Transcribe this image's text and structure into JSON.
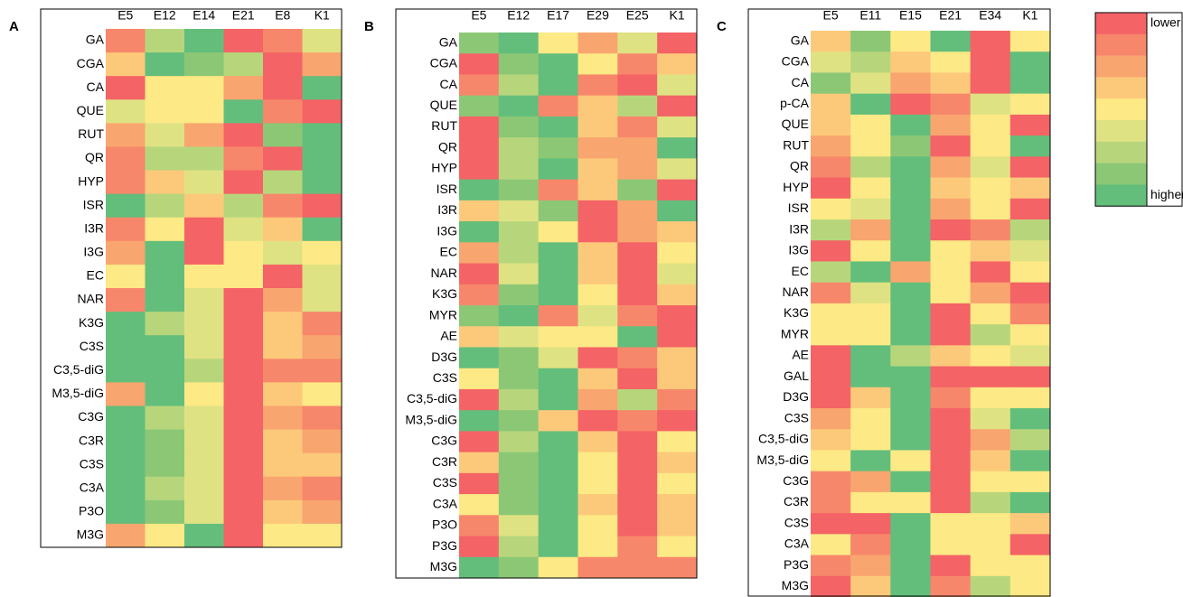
{
  "chart_data": [
    {
      "type": "heatmap",
      "label": "A",
      "columns": [
        "E5",
        "E12",
        "E14",
        "E21",
        "E8",
        "K1"
      ],
      "rows": [
        "GA",
        "CGA",
        "CA",
        "QUE",
        "RUT",
        "QR",
        "HYP",
        "ISR",
        "I3R",
        "I3G",
        "EC",
        "NAR",
        "K3G",
        "C3S",
        "C3,5-diG",
        "M3,5-diG",
        "C3G",
        "C3R",
        "C3S",
        "C3A",
        "P3O",
        "M3G"
      ],
      "values": [
        [
          1,
          6,
          8,
          0,
          1,
          5
        ],
        [
          3,
          8,
          7,
          6,
          0,
          2
        ],
        [
          0,
          4,
          4,
          2,
          0,
          8
        ],
        [
          5,
          4,
          4,
          8,
          1,
          0
        ],
        [
          2,
          5,
          2,
          0,
          7,
          8
        ],
        [
          1,
          6,
          6,
          1,
          0,
          8
        ],
        [
          1,
          3,
          5,
          0,
          6,
          8
        ],
        [
          8,
          6,
          3,
          6,
          1,
          0
        ],
        [
          1,
          4,
          0,
          5,
          3,
          8
        ],
        [
          2,
          8,
          0,
          4,
          5,
          4
        ],
        [
          4,
          8,
          4,
          4,
          0,
          5
        ],
        [
          1,
          8,
          5,
          0,
          2,
          5
        ],
        [
          8,
          6,
          5,
          0,
          3,
          1
        ],
        [
          8,
          8,
          5,
          0,
          3,
          2
        ],
        [
          8,
          8,
          6,
          0,
          1,
          1
        ],
        [
          2,
          8,
          4,
          0,
          3,
          4
        ],
        [
          8,
          6,
          5,
          0,
          2,
          1
        ],
        [
          8,
          7,
          5,
          0,
          3,
          2
        ],
        [
          8,
          7,
          5,
          0,
          3,
          3
        ],
        [
          8,
          6,
          5,
          0,
          2,
          1
        ],
        [
          8,
          7,
          5,
          0,
          3,
          2
        ],
        [
          2,
          4,
          8,
          0,
          4,
          4
        ]
      ]
    },
    {
      "type": "heatmap",
      "label": "B",
      "columns": [
        "E5",
        "E12",
        "E17",
        "E29",
        "E25",
        "K1"
      ],
      "rows": [
        "GA",
        "CGA",
        "CA",
        "QUE",
        "RUT",
        "QR",
        "HYP",
        "ISR",
        "I3R",
        "I3G",
        "EC",
        "NAR",
        "K3G",
        "MYR",
        "AE",
        "D3G",
        "C3S",
        "C3,5-diG",
        "M3,5-diG",
        "C3G",
        "C3R",
        "C3S",
        "C3A",
        "P3O",
        "P3G",
        "M3G"
      ],
      "values": [
        [
          7,
          8,
          4,
          2,
          5,
          0
        ],
        [
          0,
          7,
          8,
          4,
          1,
          3
        ],
        [
          1,
          6,
          8,
          1,
          0,
          5
        ],
        [
          7,
          8,
          1,
          3,
          6,
          0
        ],
        [
          0,
          7,
          8,
          3,
          1,
          5
        ],
        [
          0,
          6,
          7,
          2,
          2,
          8
        ],
        [
          0,
          6,
          8,
          3,
          2,
          5
        ],
        [
          8,
          7,
          1,
          3,
          7,
          0
        ],
        [
          3,
          5,
          7,
          0,
          2,
          8
        ],
        [
          8,
          6,
          4,
          0,
          2,
          3
        ],
        [
          2,
          6,
          8,
          3,
          0,
          4
        ],
        [
          0,
          5,
          8,
          3,
          0,
          5
        ],
        [
          1,
          7,
          8,
          4,
          0,
          3
        ],
        [
          7,
          8,
          1,
          5,
          1,
          0
        ],
        [
          3,
          5,
          4,
          4,
          8,
          0
        ],
        [
          8,
          7,
          5,
          0,
          1,
          3
        ],
        [
          4,
          7,
          8,
          3,
          0,
          3
        ],
        [
          0,
          6,
          8,
          2,
          6,
          1
        ],
        [
          8,
          7,
          3,
          0,
          1,
          0
        ],
        [
          0,
          6,
          8,
          3,
          0,
          4
        ],
        [
          3,
          7,
          8,
          4,
          0,
          3
        ],
        [
          0,
          7,
          8,
          4,
          0,
          4
        ],
        [
          4,
          7,
          8,
          3,
          0,
          3
        ],
        [
          1,
          5,
          8,
          4,
          0,
          3
        ],
        [
          0,
          6,
          8,
          4,
          1,
          4
        ],
        [
          8,
          7,
          4,
          1,
          1,
          1
        ]
      ]
    },
    {
      "type": "heatmap",
      "label": "C",
      "columns": [
        "E5",
        "E11",
        "E15",
        "E21",
        "E34",
        "K1"
      ],
      "rows": [
        "GA",
        "CGA",
        "CA",
        "p-CA",
        "QUE",
        "RUT",
        "QR",
        "HYP",
        "ISR",
        "I3R",
        "I3G",
        "EC",
        "NAR",
        "K3G",
        "MYR",
        "AE",
        "GAL",
        "D3G",
        "C3S",
        "C3,5-diG",
        "M3,5-diG",
        "C3G",
        "C3R",
        "C3S",
        "C3A",
        "P3G",
        "M3G"
      ],
      "values": [
        [
          3,
          7,
          4,
          8,
          0,
          4
        ],
        [
          5,
          6,
          3,
          4,
          0,
          8
        ],
        [
          7,
          5,
          2,
          3,
          0,
          8
        ],
        [
          3,
          8,
          0,
          1,
          5,
          4
        ],
        [
          3,
          4,
          8,
          2,
          4,
          0
        ],
        [
          2,
          4,
          7,
          0,
          4,
          8
        ],
        [
          1,
          6,
          8,
          2,
          5,
          0
        ],
        [
          0,
          4,
          8,
          3,
          4,
          3
        ],
        [
          4,
          5,
          8,
          2,
          4,
          0
        ],
        [
          6,
          2,
          8,
          0,
          1,
          6
        ],
        [
          0,
          4,
          8,
          4,
          3,
          5
        ],
        [
          6,
          8,
          2,
          4,
          0,
          4
        ],
        [
          1,
          5,
          8,
          4,
          2,
          0
        ],
        [
          4,
          4,
          8,
          0,
          4,
          1
        ],
        [
          4,
          4,
          8,
          0,
          6,
          4
        ],
        [
          0,
          8,
          6,
          3,
          4,
          5
        ],
        [
          0,
          8,
          8,
          0,
          0,
          0
        ],
        [
          0,
          3,
          8,
          1,
          4,
          4
        ],
        [
          2,
          4,
          8,
          0,
          5,
          8
        ],
        [
          3,
          4,
          8,
          0,
          2,
          6
        ],
        [
          4,
          8,
          4,
          0,
          3,
          8
        ],
        [
          1,
          2,
          8,
          0,
          4,
          4
        ],
        [
          1,
          4,
          4,
          0,
          6,
          8
        ],
        [
          0,
          0,
          8,
          4,
          4,
          3
        ],
        [
          4,
          1,
          8,
          4,
          4,
          0
        ],
        [
          1,
          2,
          8,
          0,
          4,
          4
        ],
        [
          0,
          3,
          8,
          1,
          6,
          4
        ]
      ]
    }
  ],
  "legend": {
    "colors": [
      "#f46366",
      "#f7876b",
      "#f9a56f",
      "#fcc97a",
      "#fde985",
      "#dfe283",
      "#b7d67c",
      "#8cc776",
      "#63be7b"
    ],
    "low_label": "lower",
    "high_label": "higher"
  }
}
